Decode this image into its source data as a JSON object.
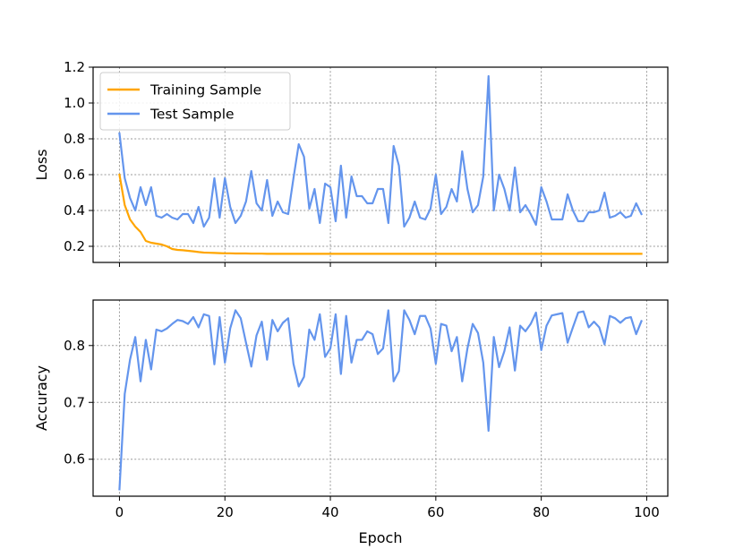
{
  "chart_data": [
    {
      "type": "line",
      "ylabel": "Loss",
      "xlim": [
        -5,
        104
      ],
      "ylim": [
        0.11,
        1.2
      ],
      "x_ticks": [
        0,
        20,
        40,
        60,
        80,
        100
      ],
      "x_tick_labels": [
        "",
        "",
        "",
        "",
        "",
        ""
      ],
      "y_ticks": [
        0.2,
        0.4,
        0.6,
        0.8,
        1.0,
        1.2
      ],
      "y_tick_labels": [
        "0.2",
        "0.4",
        "0.6",
        "0.8",
        "1.0",
        "1.2"
      ],
      "grid": true,
      "legend": "top-left",
      "series": [
        {
          "name": "Training Sample",
          "color": "#FFA500",
          "values": [
            0.6,
            0.43,
            0.35,
            0.31,
            0.28,
            0.23,
            0.22,
            0.215,
            0.21,
            0.2,
            0.185,
            0.18,
            0.178,
            0.175,
            0.172,
            0.168,
            0.165,
            0.164,
            0.163,
            0.162,
            0.161,
            0.161,
            0.16,
            0.16,
            0.16,
            0.159,
            0.159,
            0.159,
            0.158,
            0.158,
            0.158,
            0.158,
            0.158,
            0.158,
            0.158,
            0.158,
            0.158,
            0.158,
            0.158,
            0.158,
            0.158,
            0.158,
            0.158,
            0.158,
            0.158,
            0.158,
            0.158,
            0.158,
            0.158,
            0.158,
            0.158,
            0.158,
            0.158,
            0.158,
            0.158,
            0.158,
            0.158,
            0.158,
            0.158,
            0.158,
            0.158,
            0.158,
            0.158,
            0.158,
            0.158,
            0.158,
            0.158,
            0.158,
            0.158,
            0.158,
            0.158,
            0.158,
            0.158,
            0.158,
            0.158,
            0.158,
            0.158,
            0.158,
            0.158,
            0.158,
            0.158,
            0.158,
            0.158,
            0.158,
            0.158,
            0.158,
            0.158,
            0.158,
            0.158,
            0.158,
            0.158,
            0.158,
            0.158,
            0.158,
            0.158,
            0.158,
            0.158,
            0.158,
            0.158,
            0.158
          ]
        },
        {
          "name": "Test Sample",
          "color": "#6495ED",
          "values": [
            0.83,
            0.58,
            0.47,
            0.4,
            0.53,
            0.43,
            0.53,
            0.37,
            0.36,
            0.38,
            0.36,
            0.35,
            0.38,
            0.38,
            0.33,
            0.42,
            0.31,
            0.36,
            0.58,
            0.36,
            0.58,
            0.42,
            0.33,
            0.37,
            0.45,
            0.62,
            0.44,
            0.4,
            0.57,
            0.37,
            0.45,
            0.39,
            0.38,
            0.58,
            0.77,
            0.7,
            0.41,
            0.52,
            0.33,
            0.55,
            0.53,
            0.34,
            0.65,
            0.36,
            0.59,
            0.48,
            0.48,
            0.44,
            0.44,
            0.52,
            0.52,
            0.33,
            0.76,
            0.65,
            0.31,
            0.36,
            0.45,
            0.36,
            0.35,
            0.41,
            0.6,
            0.38,
            0.42,
            0.52,
            0.45,
            0.73,
            0.52,
            0.39,
            0.43,
            0.59,
            1.15,
            0.4,
            0.6,
            0.52,
            0.4,
            0.64,
            0.39,
            0.43,
            0.38,
            0.32,
            0.53,
            0.45,
            0.35,
            0.35,
            0.35,
            0.49,
            0.4,
            0.34,
            0.34,
            0.39,
            0.39,
            0.4,
            0.5,
            0.36,
            0.37,
            0.39,
            0.36,
            0.37,
            0.44,
            0.38
          ]
        }
      ]
    },
    {
      "type": "line",
      "xlabel": "Epoch",
      "ylabel": "Accuracy",
      "xlim": [
        -5,
        104
      ],
      "ylim": [
        0.535,
        0.88
      ],
      "x_ticks": [
        0,
        20,
        40,
        60,
        80,
        100
      ],
      "x_tick_labels": [
        "0",
        "20",
        "40",
        "60",
        "80",
        "100"
      ],
      "y_ticks": [
        0.6,
        0.7,
        0.8
      ],
      "y_tick_labels": [
        "0.6",
        "0.7",
        "0.8"
      ],
      "grid": true,
      "series": [
        {
          "color": "#6495ED",
          "values": [
            0.547,
            0.715,
            0.775,
            0.815,
            0.737,
            0.81,
            0.758,
            0.828,
            0.825,
            0.83,
            0.838,
            0.845,
            0.843,
            0.838,
            0.85,
            0.832,
            0.855,
            0.852,
            0.767,
            0.85,
            0.77,
            0.83,
            0.862,
            0.848,
            0.805,
            0.763,
            0.818,
            0.842,
            0.775,
            0.845,
            0.825,
            0.84,
            0.848,
            0.768,
            0.728,
            0.745,
            0.828,
            0.81,
            0.855,
            0.78,
            0.795,
            0.855,
            0.75,
            0.852,
            0.77,
            0.81,
            0.81,
            0.825,
            0.82,
            0.785,
            0.795,
            0.862,
            0.737,
            0.755,
            0.862,
            0.845,
            0.82,
            0.852,
            0.852,
            0.83,
            0.768,
            0.838,
            0.835,
            0.79,
            0.815,
            0.737,
            0.795,
            0.838,
            0.822,
            0.77,
            0.65,
            0.815,
            0.762,
            0.79,
            0.832,
            0.756,
            0.835,
            0.825,
            0.838,
            0.858,
            0.792,
            0.835,
            0.853,
            0.855,
            0.857,
            0.805,
            0.832,
            0.858,
            0.86,
            0.832,
            0.842,
            0.832,
            0.802,
            0.852,
            0.848,
            0.84,
            0.848,
            0.85,
            0.82,
            0.843
          ]
        }
      ]
    }
  ]
}
